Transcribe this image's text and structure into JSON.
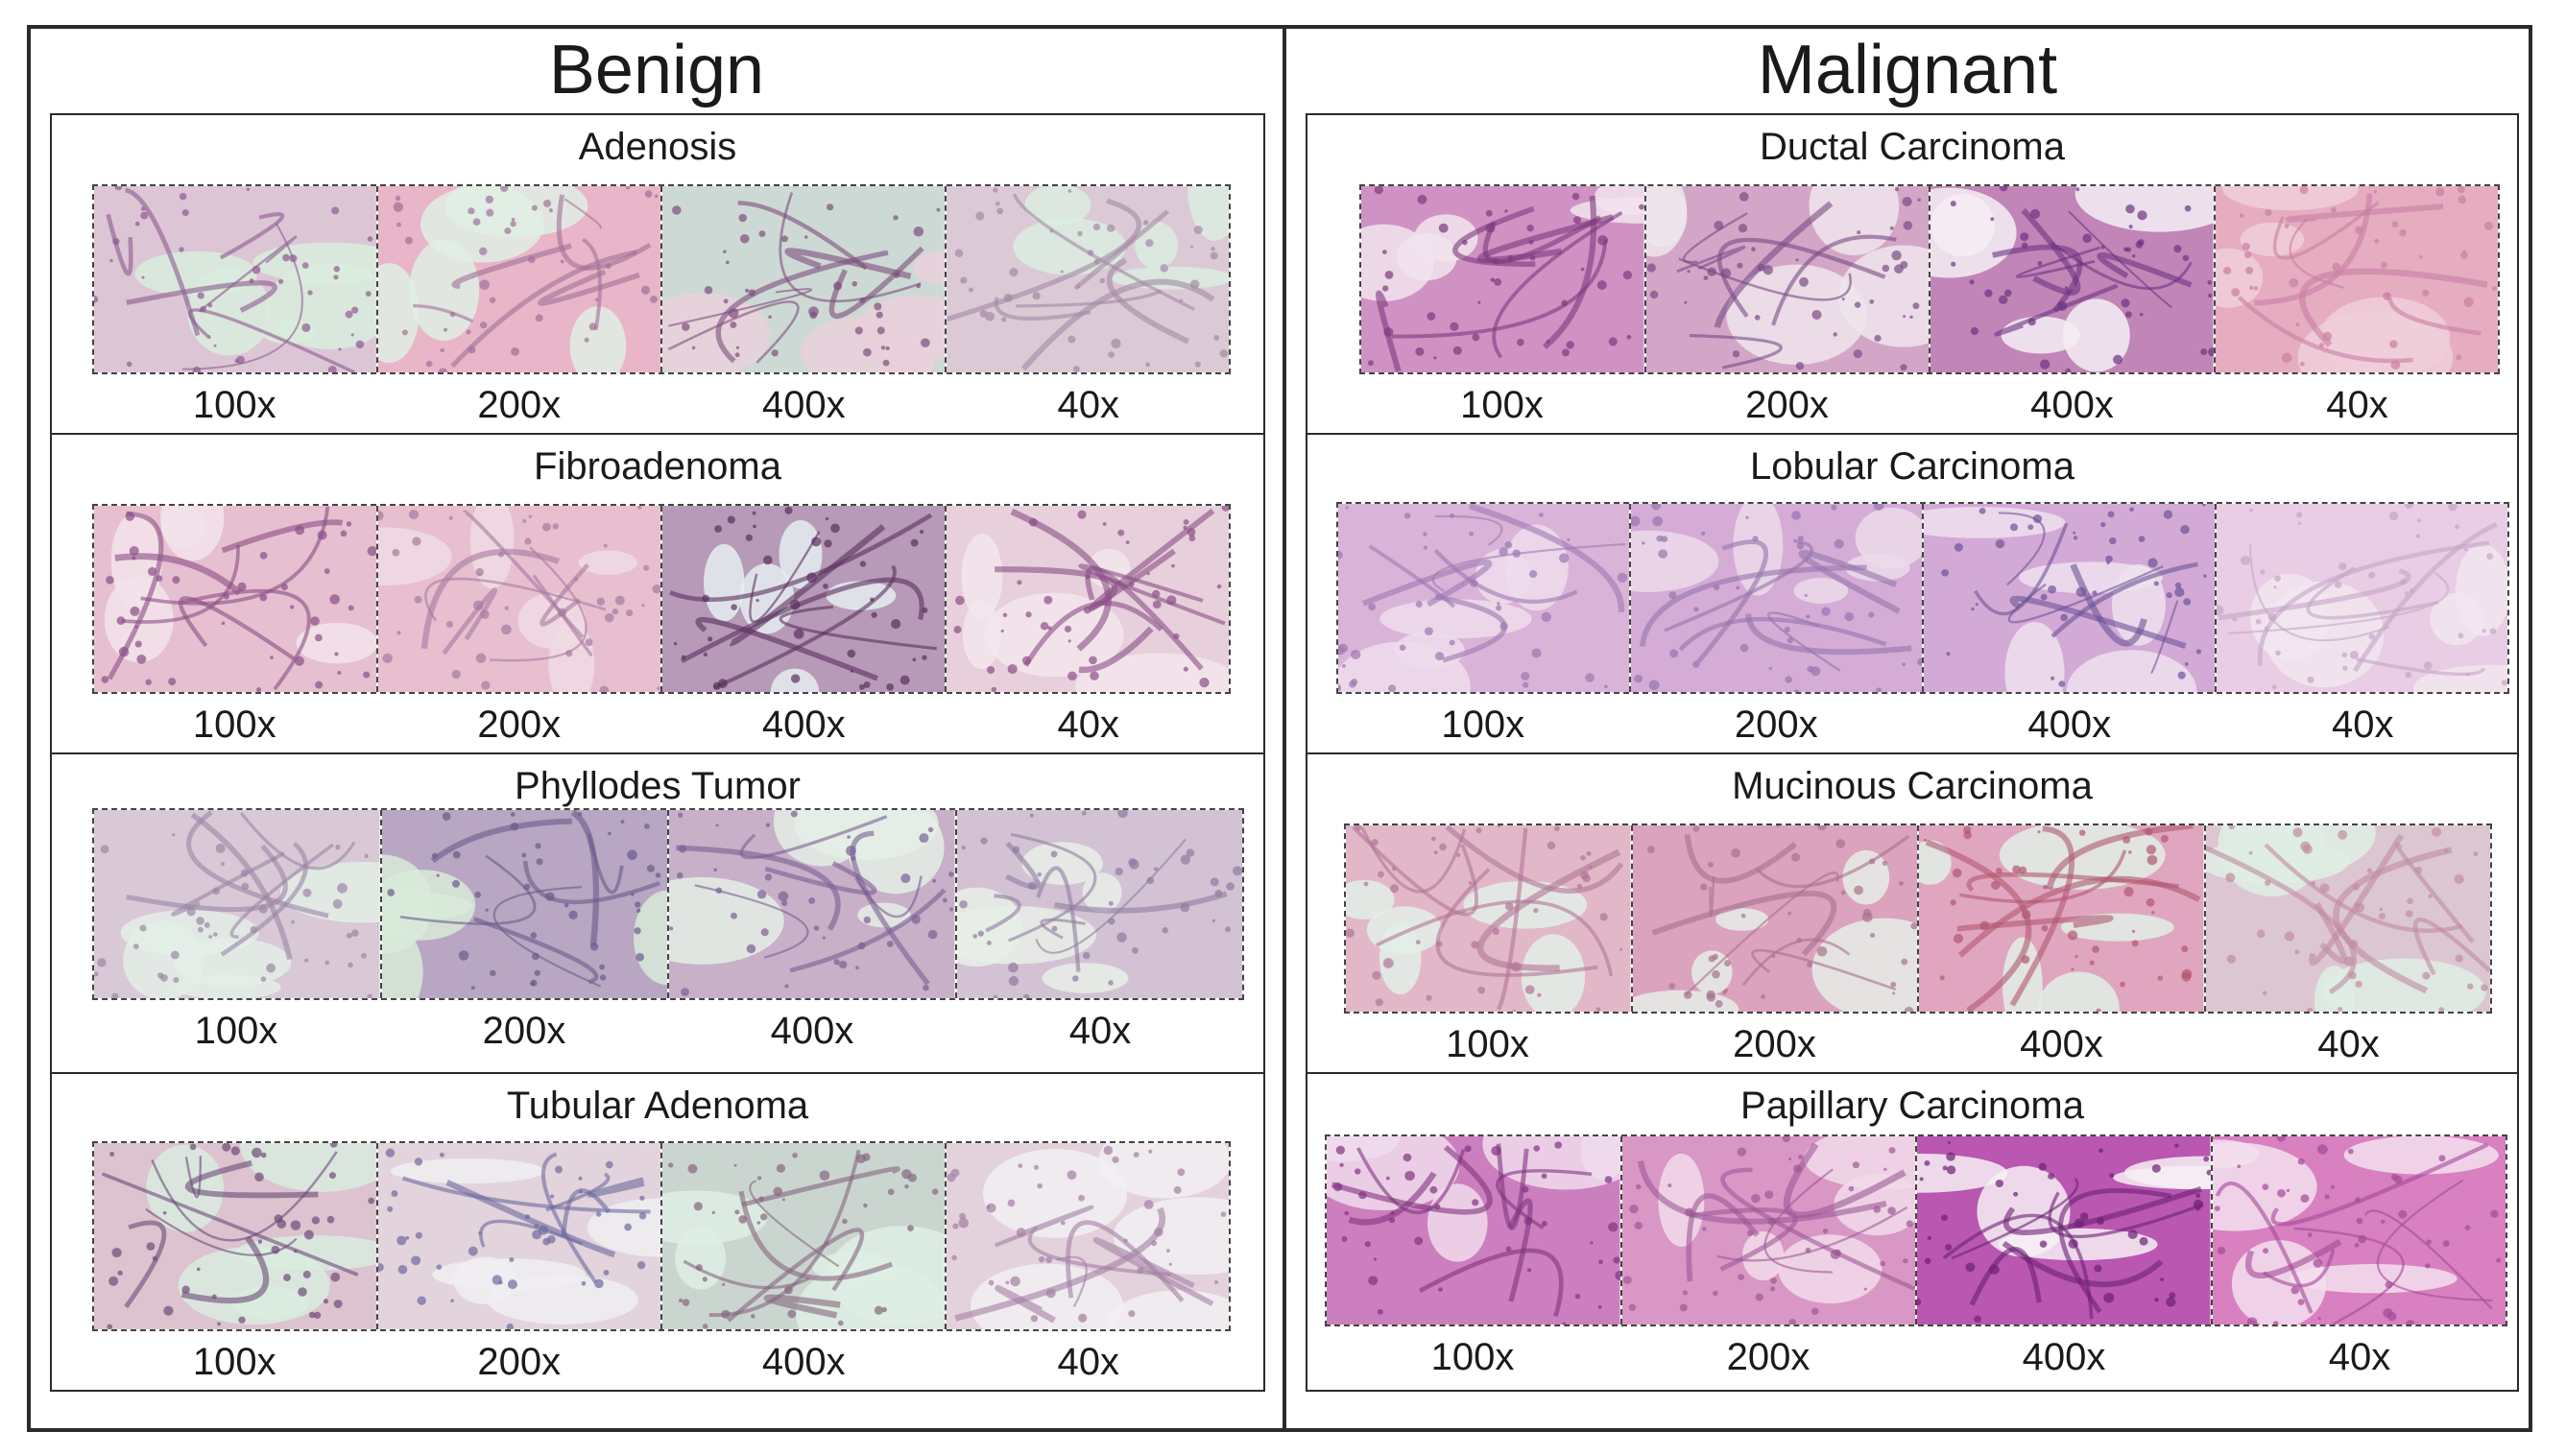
{
  "columns": [
    {
      "title": "Benign",
      "sections": [
        {
          "title": "Adenosis",
          "tiles": [
            {
              "mag": "100x",
              "base": "#dcc6d6",
              "accent": "#8e5a8f",
              "light": "#d9ecde"
            },
            {
              "mag": "200x",
              "base": "#e8b6c8",
              "accent": "#a07098",
              "light": "#dfeee4"
            },
            {
              "mag": "400x",
              "base": "#cdd9d4",
              "accent": "#7d4d7c",
              "light": "#e9d0db"
            },
            {
              "mag": "40x",
              "base": "#dcc9d6",
              "accent": "#a28aa3",
              "light": "#dbece1"
            }
          ]
        },
        {
          "title": "Fibroadenoma",
          "tiles": [
            {
              "mag": "100x",
              "base": "#e6bfd0",
              "accent": "#8a4f86",
              "light": "#f2e3ea"
            },
            {
              "mag": "200x",
              "base": "#e7bfcf",
              "accent": "#a77aa0",
              "light": "#f0dbe4"
            },
            {
              "mag": "400x",
              "base": "#b69ab8",
              "accent": "#5a2f5e",
              "light": "#e6edf0"
            },
            {
              "mag": "40x",
              "base": "#e7cfdc",
              "accent": "#8b4f86",
              "light": "#f3e6ec"
            }
          ]
        },
        {
          "title": "Phyllodes Tumor",
          "tiles": [
            {
              "mag": "100x",
              "base": "#d9c9d6",
              "accent": "#9a86a5",
              "light": "#e3eee7"
            },
            {
              "mag": "200x",
              "base": "#b8a6c2",
              "accent": "#6b5a8a",
              "light": "#d8ead9"
            },
            {
              "mag": "400x",
              "base": "#c7b0c8",
              "accent": "#7a5f93",
              "light": "#e4eee6"
            },
            {
              "mag": "40x",
              "base": "#d3c2d4",
              "accent": "#8f7ba0",
              "light": "#e8efe6"
            }
          ]
        },
        {
          "title": "Tubular Adenoma",
          "tiles": [
            {
              "mag": "100x",
              "base": "#dcc3cf",
              "accent": "#6d4a78",
              "light": "#d9ecdf"
            },
            {
              "mag": "200x",
              "base": "#e2d3dc",
              "accent": "#6e6a9e",
              "light": "#f0eef2"
            },
            {
              "mag": "400x",
              "base": "#cbd5d0",
              "accent": "#86657f",
              "light": "#dfeee4"
            },
            {
              "mag": "40x",
              "base": "#e3d1dc",
              "accent": "#a37fa3",
              "light": "#f2f0f2"
            }
          ]
        }
      ]
    },
    {
      "title": "Malignant",
      "sections": [
        {
          "title": "Ductal Carcinoma",
          "tiles": [
            {
              "mag": "100x",
              "base": "#cf92c3",
              "accent": "#7d3b7e",
              "light": "#f2e4ee"
            },
            {
              "mag": "200x",
              "base": "#d3a6c8",
              "accent": "#7a4b85",
              "light": "#efe5ec"
            },
            {
              "mag": "400x",
              "base": "#c285b8",
              "accent": "#6b3380",
              "light": "#f4eef3"
            },
            {
              "mag": "40x",
              "base": "#e6adc0",
              "accent": "#c87fa3",
              "light": "#f0cfd9"
            }
          ]
        },
        {
          "title": "Lobular Carcinoma",
          "tiles": [
            {
              "mag": "100x",
              "base": "#dab3d8",
              "accent": "#9c78b0",
              "light": "#efdcec"
            },
            {
              "mag": "200x",
              "base": "#d5acd5",
              "accent": "#9475ae",
              "light": "#ecd9ea"
            },
            {
              "mag": "400x",
              "base": "#d3aad6",
              "accent": "#6c5396",
              "light": "#efe2ee"
            },
            {
              "mag": "40x",
              "base": "#e8cde4",
              "accent": "#c6a4c8",
              "light": "#f2e6f0"
            }
          ]
        },
        {
          "title": "Mucinous Carcinoma",
          "tiles": [
            {
              "mag": "100x",
              "base": "#e2b8c9",
              "accent": "#b07596",
              "light": "#e3eee7"
            },
            {
              "mag": "200x",
              "base": "#dba3bd",
              "accent": "#a5728f",
              "light": "#e6efe9"
            },
            {
              "mag": "400x",
              "base": "#e0a6bf",
              "accent": "#b0586f",
              "light": "#e1eee6"
            },
            {
              "mag": "40x",
              "base": "#dcc6d2",
              "accent": "#c08ba4",
              "light": "#dfede4"
            }
          ]
        },
        {
          "title": "Papillary Carcinoma",
          "tiles": [
            {
              "mag": "100x",
              "base": "#cc7fbf",
              "accent": "#80337f",
              "light": "#f0dbec"
            },
            {
              "mag": "200x",
              "base": "#d997c6",
              "accent": "#9d5896",
              "light": "#f1dbe9"
            },
            {
              "mag": "400x",
              "base": "#b957b1",
              "accent": "#6d1f74",
              "light": "#f7f0f6"
            },
            {
              "mag": "40x",
              "base": "#d880c0",
              "accent": "#a34a97",
              "light": "#f5e1ee"
            }
          ]
        }
      ]
    }
  ]
}
